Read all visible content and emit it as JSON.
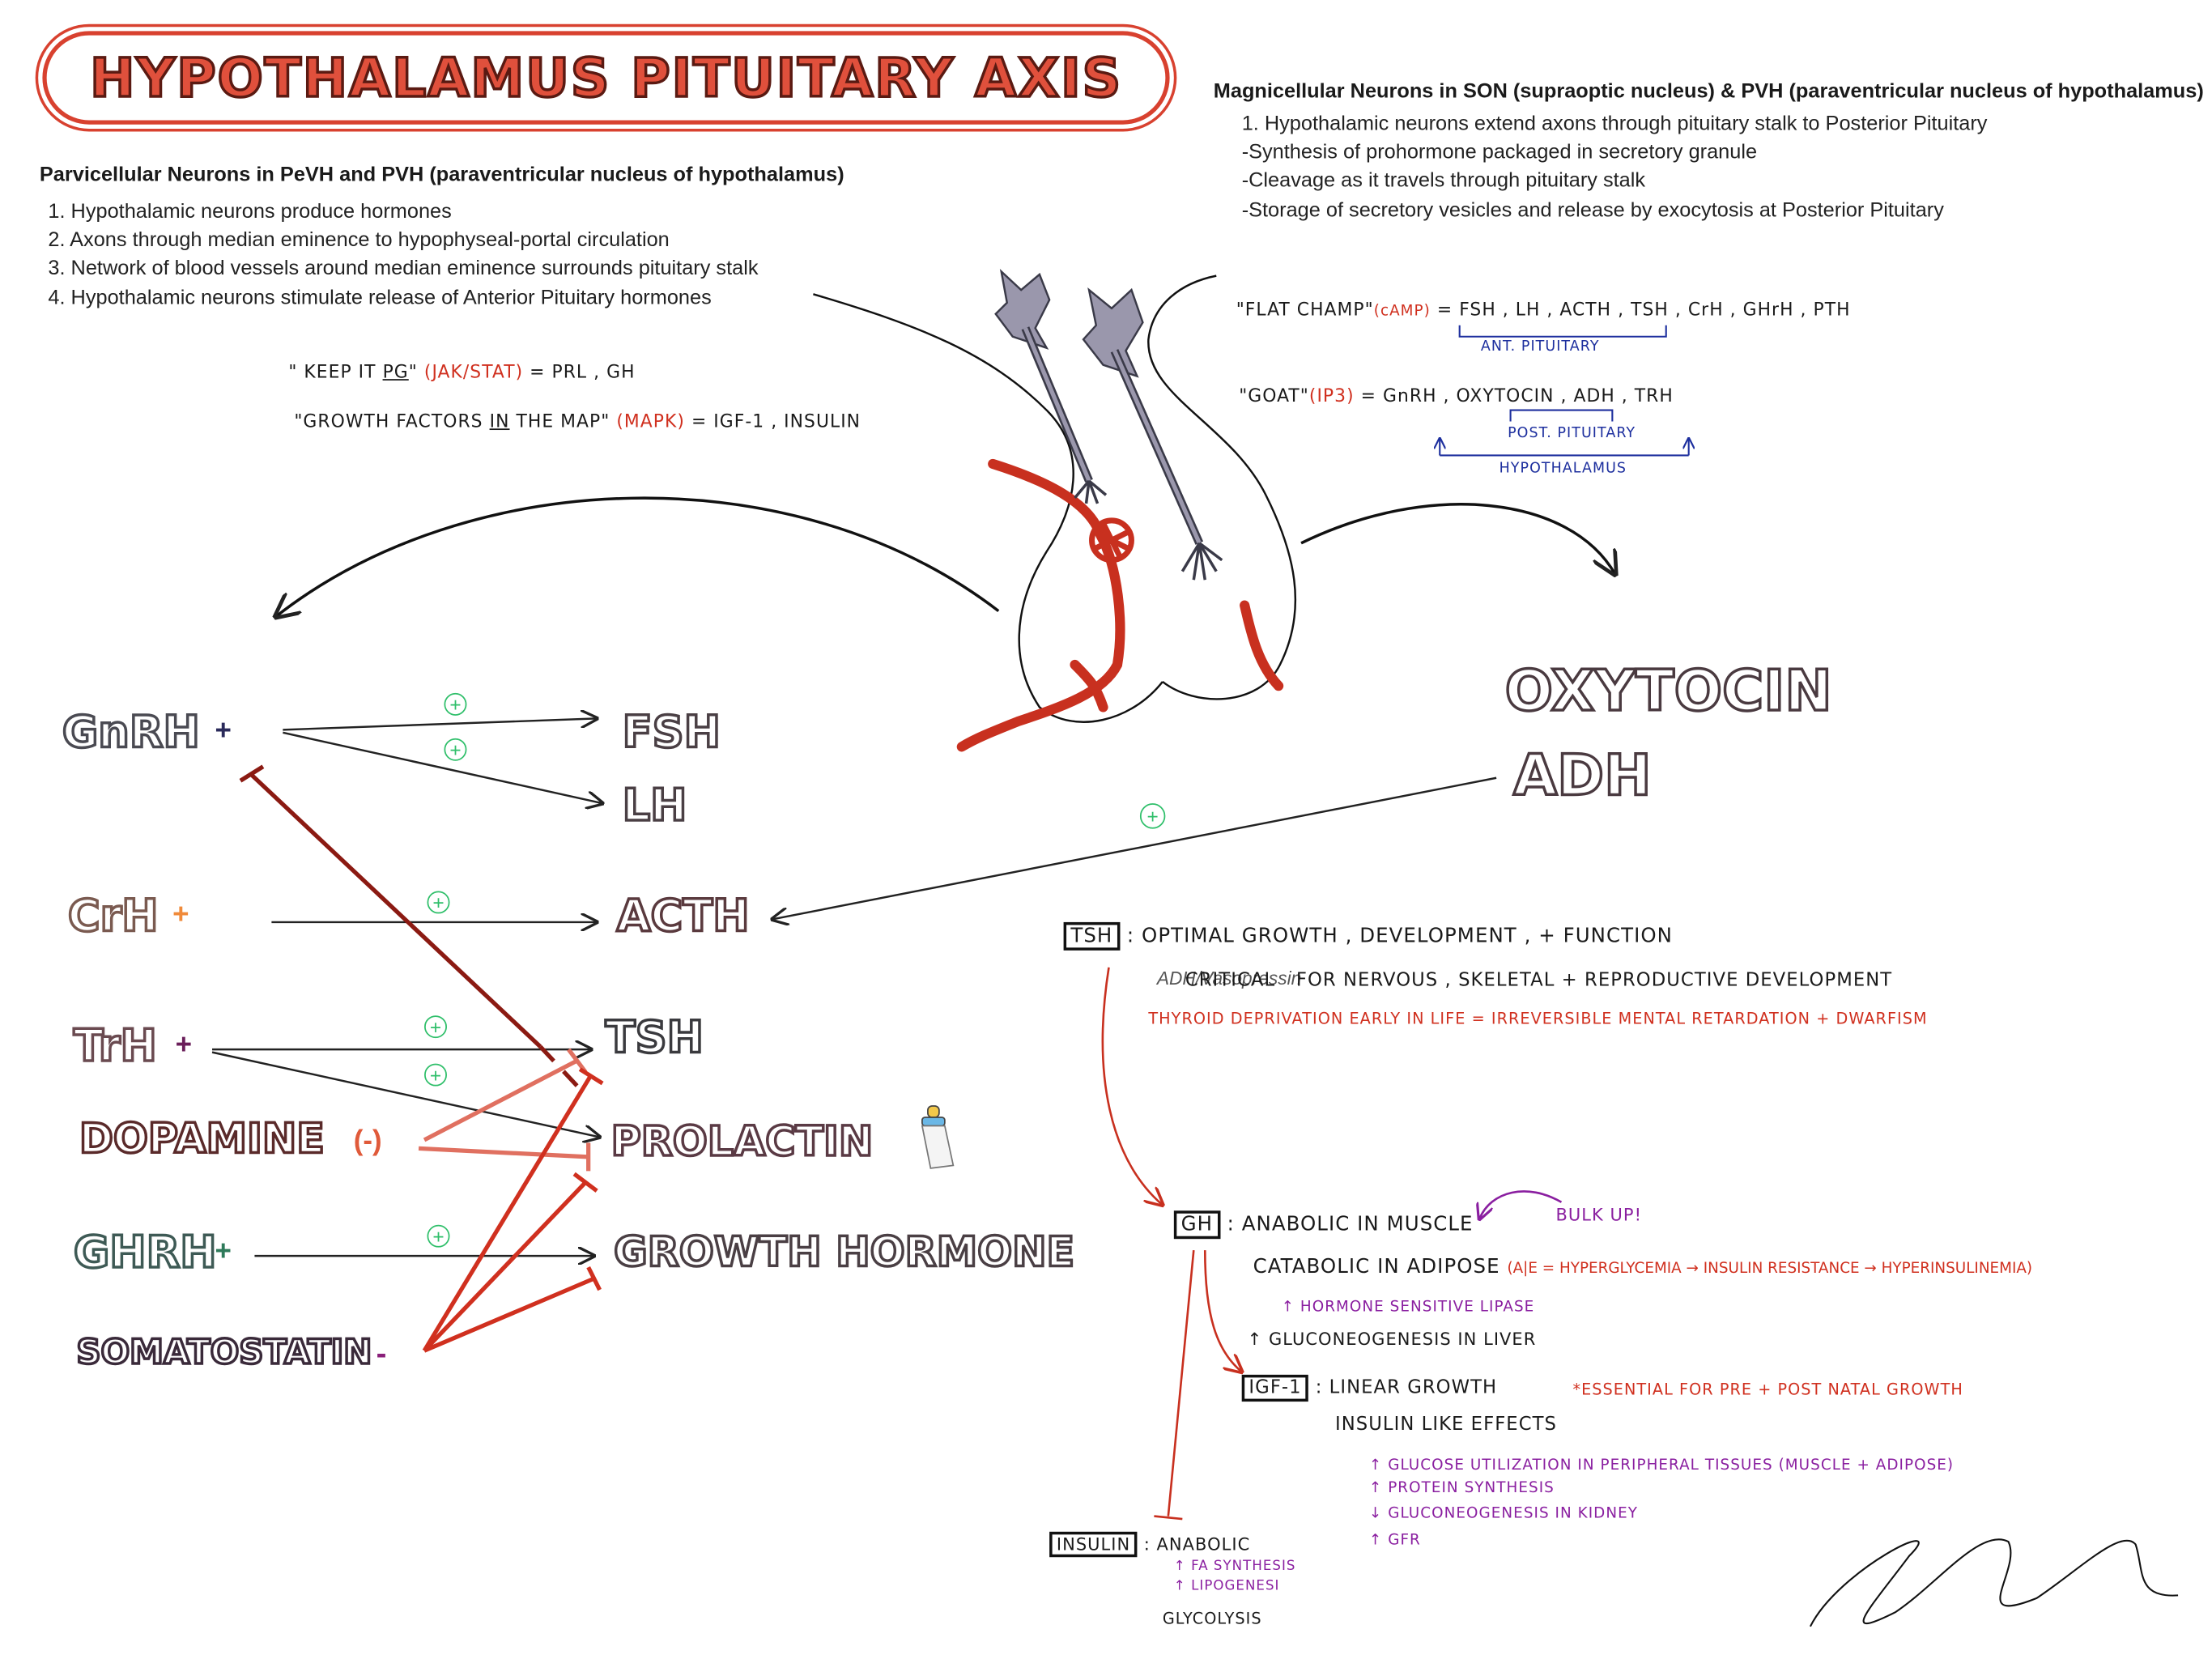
{
  "title": "HYPOTHALAMUS PITUITARY AXIS",
  "parvocellular": {
    "heading": "Parvicellular Neurons in PeVH and PVH (paraventricular nucleus of hypothalamus)",
    "points": [
      "1. Hypothalamic neurons produce hormones",
      "2. Axons through median eminence to hypophyseal-portal circulation",
      "3. Network of blood vessels around median eminence surrounds pituitary stalk",
      "4. Hypothalamic neurons stimulate release of Anterior Pituitary hormones"
    ]
  },
  "magnocellular": {
    "heading": "Magnicellular Neurons in SON (supraoptic nucleus) & PVH (paraventricular nucleus of hypothalamus)",
    "points": [
      "1. Hypothalamic neurons extend axons through pituitary stalk to Posterior Pituitary",
      "-Synthesis of prohormone packaged in secretory granule",
      "-Cleavage as it travels through pituitary stalk",
      "-Storage of secretory vesicles and release by exocytosis at Posterior Pituitary"
    ]
  },
  "mnemonics_left": {
    "pg_open": "\" KEEP IT ",
    "pg_word": "PG",
    "pg_close": "\"",
    "pg_path": "(JAK/STAT)",
    "pg_result": "= PRL , GH",
    "gf_open": "\"GROWTH FACTORS ",
    "gf_word": "IN",
    "gf_close": " THE MAP\"",
    "gf_path": "(MAPK)",
    "gf_result": "= IGF-1 , INSULIN"
  },
  "mnemonics_right": {
    "flat_open": "\"FLAT CHAMP\"",
    "flat_path": "(cAMP)",
    "flat_result_a": "= FSH , LH , ACTH , TSH",
    "flat_result_b": ", CrH , GHrH , PTH",
    "flat_note": "ANT. PITUITARY",
    "goat_open": "\"GOAT\"",
    "goat_path": "(IP3)",
    "goat_result": "= GnRH , OXYTOCIN , ADH , TRH",
    "goat_note1": "POST. PITUITARY",
    "goat_note2": "HYPOTHALAMUS"
  },
  "releasing_hormones": {
    "gnrh": "GnRH",
    "gnrh_sign": "+",
    "crh": "CrH",
    "crh_sign": "+",
    "trh": "TrH",
    "trh_sign": "+",
    "dopamine": "DOPAMINE",
    "dopamine_sign": "(-)",
    "ghrh": "GHRH",
    "ghrh_sign": "+",
    "somatostatin": "SOMATOSTATIN",
    "somatostatin_sign": "-"
  },
  "anterior_hormones": {
    "fsh": "FSH",
    "lh": "LH",
    "acth": "ACTH",
    "tsh": "TSH",
    "prolactin": "PROLACTIN",
    "gh": "GROWTH HORMONE"
  },
  "posterior_hormones": {
    "oxytocin": "OXYTOCIN",
    "adh": "ADH"
  },
  "stim_symbol": "+",
  "tsh_notes": {
    "label": "TSH",
    "line1": ": OPTIMAL GROWTH , DEVELOPMENT , + FUNCTION",
    "line2_overlap": "ADH/Vasopressin",
    "line2_a": "CRITICAL",
    "line2_b": "FOR NERVOUS , SKELETAL + REPRODUCTIVE DEVELOPMENT",
    "line3": "THYROID DEPRIVATION EARLY IN LIFE = IRREVERSIBLE MENTAL RETARDATION + DWARFISM"
  },
  "gh_notes": {
    "label": "GH",
    "line1": ": ANABOLIC IN MUSCLE",
    "bulk": "BULK UP!",
    "line2": "CATABOLIC IN ADIPOSE",
    "line2_red": "(A|E = HYPERGLYCEMIA → INSULIN RESISTANCE → HYPERINSULINEMIA)",
    "line3": "↑ HORMONE SENSITIVE LIPASE",
    "line4": "↑ GLUCONEOGENESIS IN LIVER"
  },
  "igf_notes": {
    "label": "IGF-1",
    "line1": ": LINEAR GROWTH",
    "essential": "*ESSENTIAL FOR PRE + POST NATAL GROWTH",
    "line2": "INSULIN LIKE EFFECTS",
    "e1": "↑ GLUCOSE UTILIZATION IN PERIPHERAL TISSUES (MUSCLE + ADIPOSE)",
    "e2": "↑ PROTEIN SYNTHESIS",
    "e3": "↓ GLUCONEOGENESIS IN KIDNEY",
    "e4": "↑ GFR"
  },
  "insulin_notes": {
    "label": "INSULIN",
    "line1": ": ANABOLIC",
    "e1": "↑ FA SYNTHESIS",
    "e2": "↑ LIPOGENESI",
    "line2": "GLYCOLYSIS"
  },
  "colors": {
    "red": "#d0301f",
    "darkred": "#8b1a12",
    "green": "#2fbf6a",
    "purple": "#8a1fa0",
    "blue": "#1d2f9e",
    "orange": "#f08a3a",
    "neuron": "#9a97ac"
  }
}
